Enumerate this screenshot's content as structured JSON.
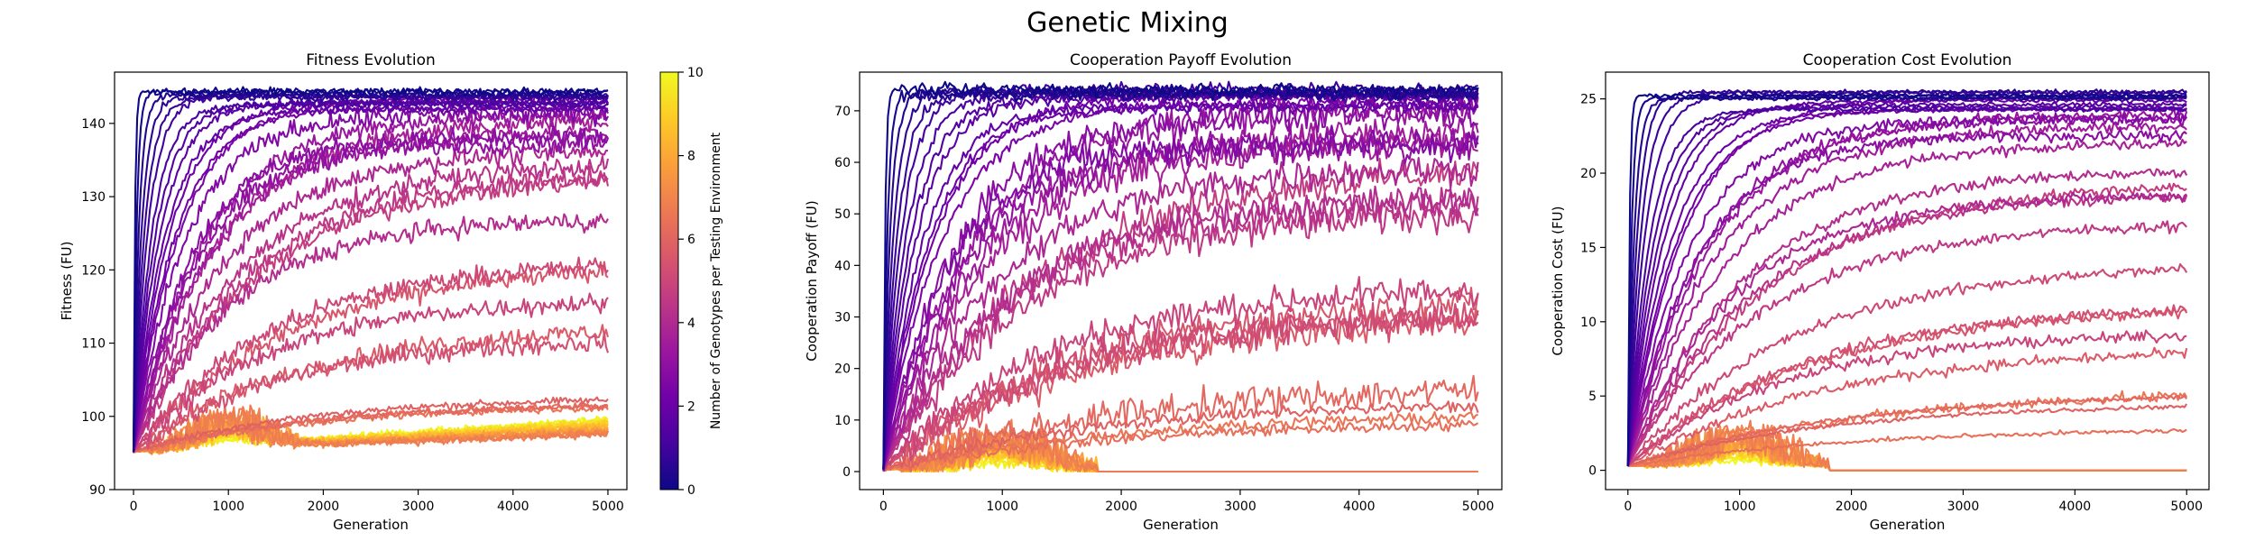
{
  "figure": {
    "title": "Genetic Mixing",
    "colormap": [
      "#0d0887",
      "#46039f",
      "#7201a8",
      "#9c179e",
      "#bd3786",
      "#d8576b",
      "#ed7953",
      "#fb9f3a",
      "#fdca26",
      "#f0f921"
    ]
  },
  "colorbar": {
    "label": "Number of Genotypes per Testing Environment",
    "min": 0,
    "max": 10,
    "ticks": [
      0,
      2,
      4,
      6,
      8,
      10
    ]
  },
  "chart_data": [
    {
      "type": "line",
      "title": "Fitness Evolution",
      "xlabel": "Generation",
      "ylabel": "Fitness (FU)",
      "xlim": [
        -200,
        5200
      ],
      "ylim": [
        90,
        147
      ],
      "xticks": [
        0,
        1000,
        2000,
        3000,
        4000,
        5000
      ],
      "yticks": [
        90,
        100,
        110,
        120,
        130,
        140
      ],
      "grid": false,
      "series_count": 50,
      "color_by": "Number of Genotypes per Testing Environment",
      "series_summary": [
        {
          "genotypes": 0.0,
          "start": 95.2,
          "end": 145.0
        },
        {
          "genotypes": 1.0,
          "start": 95.2,
          "end": 143.0
        },
        {
          "genotypes": 2.0,
          "start": 95.2,
          "end": 140.0
        },
        {
          "genotypes": 3.0,
          "start": 95.2,
          "end": 136.0
        },
        {
          "genotypes": 4.0,
          "start": 95.2,
          "end": 130.0
        },
        {
          "genotypes": 5.0,
          "start": 95.2,
          "end": 118.0
        },
        {
          "genotypes": 6.0,
          "start": 95.2,
          "end": 103.0
        },
        {
          "genotypes": 7.0,
          "start": 95.2,
          "end": 97.0
        },
        {
          "genotypes": 8.0,
          "start": 95.2,
          "end": 98.5
        },
        {
          "genotypes": 10.0,
          "start": 95.2,
          "end": 99.5
        }
      ]
    },
    {
      "type": "line",
      "title": "Cooperation Payoff Evolution",
      "xlabel": "Generation",
      "ylabel": "Cooperation Payoff (FU)",
      "xlim": [
        -200,
        5200
      ],
      "ylim": [
        -3.5,
        77.5
      ],
      "xticks": [
        0,
        1000,
        2000,
        3000,
        4000,
        5000
      ],
      "yticks": [
        0,
        10,
        20,
        30,
        40,
        50,
        60,
        70
      ],
      "grid": false,
      "series_count": 50,
      "color_by": "Number of Genotypes per Testing Environment",
      "series_summary": [
        {
          "genotypes": 0.0,
          "start": 0.5,
          "end": 74.0
        },
        {
          "genotypes": 1.0,
          "start": 0.5,
          "end": 73.5
        },
        {
          "genotypes": 2.0,
          "start": 0.5,
          "end": 72.0
        },
        {
          "genotypes": 3.0,
          "start": 0.5,
          "end": 68.0
        },
        {
          "genotypes": 4.0,
          "start": 0.5,
          "end": 58.0
        },
        {
          "genotypes": 5.0,
          "start": 0.5,
          "end": 35.0
        },
        {
          "genotypes": 6.0,
          "start": 0.5,
          "end": 12.0
        },
        {
          "genotypes": 7.0,
          "start": 0.5,
          "end": 0.0
        },
        {
          "genotypes": 10.0,
          "start": 0.5,
          "end": 0.0
        }
      ]
    },
    {
      "type": "line",
      "title": "Cooperation Cost Evolution",
      "xlabel": "Generation",
      "ylabel": "Cooperation Cost (FU)",
      "xlim": [
        -200,
        5200
      ],
      "ylim": [
        -1.3,
        26.8
      ],
      "xticks": [
        0,
        1000,
        2000,
        3000,
        4000,
        5000
      ],
      "yticks": [
        0,
        5,
        10,
        15,
        20,
        25
      ],
      "grid": false,
      "series_count": 50,
      "color_by": "Number of Genotypes per Testing Environment",
      "series_summary": [
        {
          "genotypes": 0.0,
          "start": 0.3,
          "end": 25.5
        },
        {
          "genotypes": 1.0,
          "start": 0.3,
          "end": 25.2
        },
        {
          "genotypes": 2.0,
          "start": 0.3,
          "end": 24.5
        },
        {
          "genotypes": 3.0,
          "start": 0.3,
          "end": 22.5
        },
        {
          "genotypes": 4.0,
          "start": 0.3,
          "end": 19.0
        },
        {
          "genotypes": 5.0,
          "start": 0.3,
          "end": 11.5
        },
        {
          "genotypes": 6.0,
          "start": 0.3,
          "end": 4.5
        },
        {
          "genotypes": 7.0,
          "start": 0.3,
          "end": 0.0
        },
        {
          "genotypes": 10.0,
          "start": 0.3,
          "end": 0.0
        }
      ]
    }
  ]
}
